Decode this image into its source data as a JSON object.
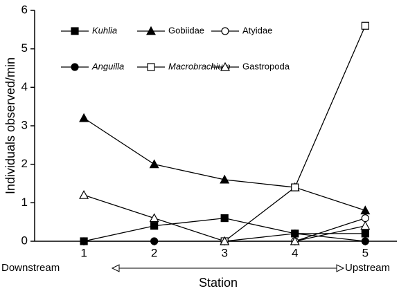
{
  "chart_data": {
    "type": "line",
    "x": [
      1,
      2,
      3,
      4,
      5
    ],
    "xlim": [
      0.3,
      5.45
    ],
    "ylim": [
      0,
      6
    ],
    "xticks": [
      1,
      2,
      3,
      4,
      5
    ],
    "yticks": [
      0,
      1,
      2,
      3,
      4,
      5,
      6
    ],
    "xlabel": "Station",
    "ylabel": "Individuals observed/min",
    "annotations": [
      "Downstream",
      "Upstream"
    ],
    "legend": "upper left",
    "series": [
      {
        "name": "Kuhlia",
        "italic": true,
        "marker": "square",
        "filled": true,
        "color": "#000000",
        "values": [
          0,
          0.4,
          0.6,
          0.2,
          0.2
        ]
      },
      {
        "name": "Gobiidae",
        "italic": false,
        "marker": "triangle",
        "filled": true,
        "color": "#000000",
        "values": [
          3.2,
          2.0,
          1.6,
          1.4,
          0.8
        ]
      },
      {
        "name": "Atyidae",
        "italic": false,
        "marker": "circle",
        "filled": false,
        "color": "#000000",
        "values": [
          null,
          null,
          null,
          0,
          0.6
        ]
      },
      {
        "name": "Anguilla",
        "italic": true,
        "marker": "circle",
        "filled": true,
        "color": "#000000",
        "values": [
          0,
          0,
          0,
          0.2,
          0
        ]
      },
      {
        "name": "Macrobrachium",
        "italic": true,
        "marker": "square",
        "filled": false,
        "color": "#000000",
        "values": [
          null,
          null,
          0,
          1.4,
          5.6
        ]
      },
      {
        "name": "Gastropoda",
        "italic": false,
        "marker": "triangle",
        "filled": false,
        "color": "#000000",
        "values": [
          1.2,
          0.6,
          0,
          0,
          0.4
        ]
      }
    ]
  }
}
